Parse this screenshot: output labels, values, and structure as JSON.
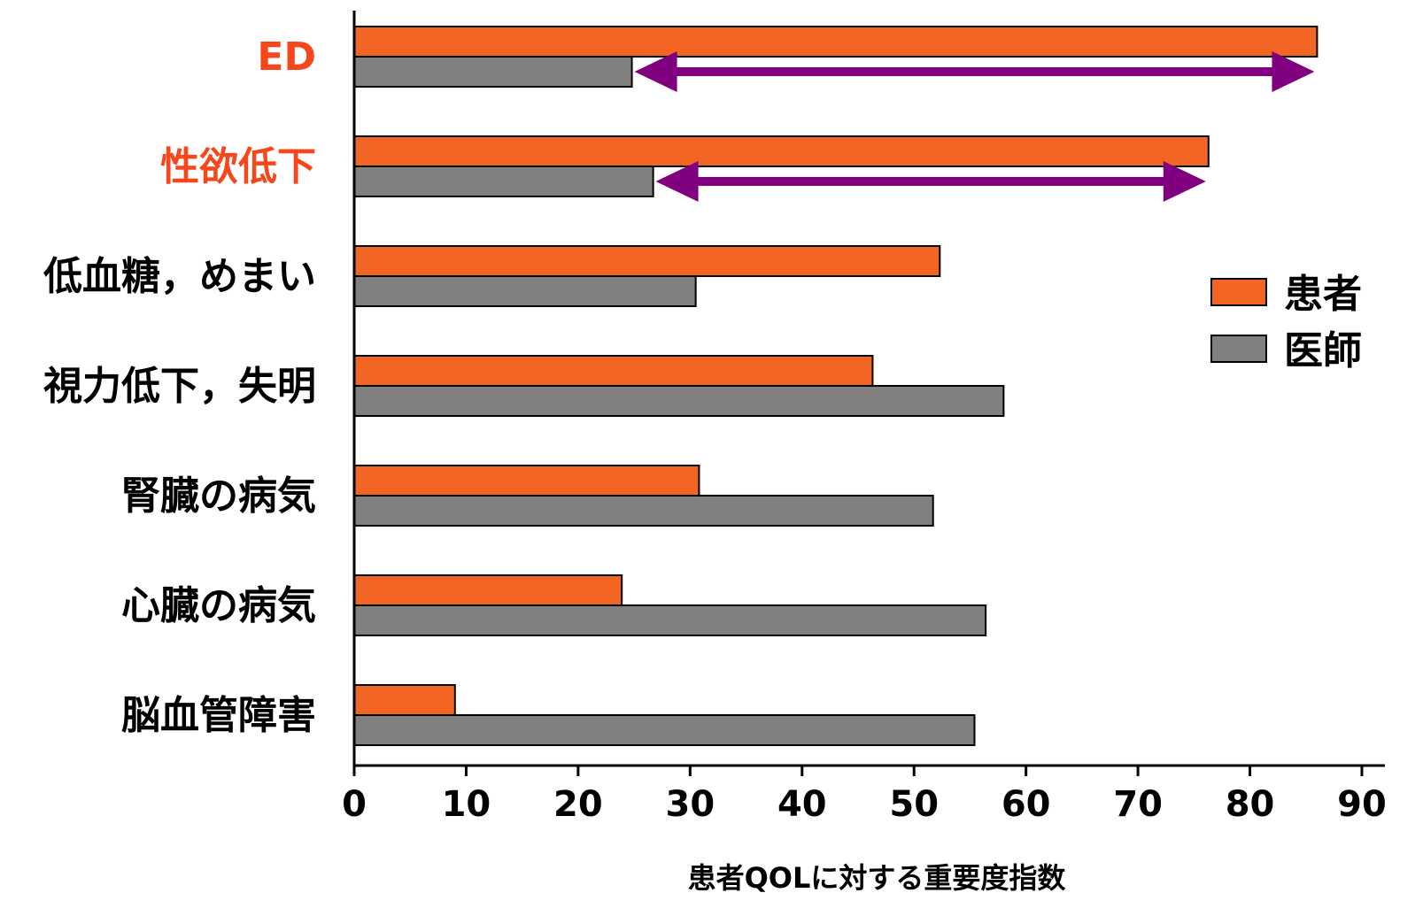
{
  "chart_data": {
    "type": "bar",
    "orientation": "horizontal",
    "categories": [
      "ED",
      "性欲低下",
      "低血糖，めまい",
      "視力低下，失明",
      "腎臓の病気",
      "心臓の病気",
      "脳血管障害"
    ],
    "highlight_categories": [
      "ED",
      "性欲低下"
    ],
    "series": [
      {
        "name": "患者",
        "values": [
          86,
          76.3,
          52.3,
          46.3,
          30.8,
          23.9,
          9
        ]
      },
      {
        "name": "医師",
        "values": [
          24.8,
          26.7,
          30.5,
          58,
          51.7,
          56.4,
          55.4
        ]
      }
    ],
    "xlabel": "患者QOLに対する重要度指数",
    "ylabel": "",
    "xlim": [
      0,
      90
    ],
    "xticks": [
      0,
      10,
      20,
      30,
      40,
      50,
      60,
      70,
      80,
      90
    ],
    "grid": false,
    "legend": "right",
    "annotations": [
      {
        "type": "double-arrow",
        "category": "ED",
        "from": 24.8,
        "to": 86
      },
      {
        "type": "double-arrow",
        "category": "性欲低下",
        "from": 26.7,
        "to": 76.3
      }
    ],
    "colors": {
      "patient": "#f26522",
      "doctor": "#808080",
      "highlight_label": "#f5471b",
      "arrow": "#800080",
      "axis": "#000000"
    }
  }
}
